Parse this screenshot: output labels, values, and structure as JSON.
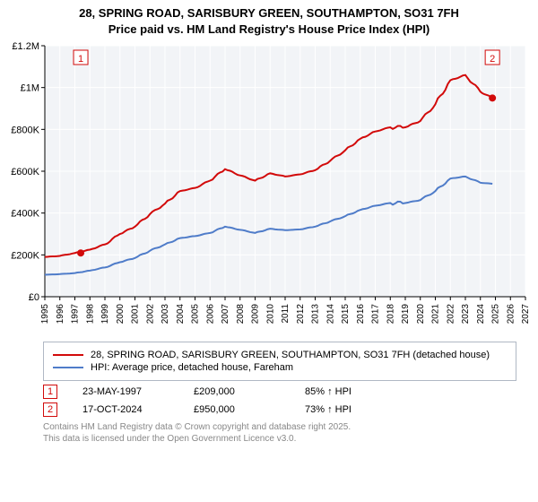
{
  "title": {
    "line1": "28, SPRING ROAD, SARISBURY GREEN, SOUTHAMPTON, SO31 7FH",
    "line2": "Price paid vs. HM Land Registry's House Price Index (HPI)",
    "fontsize": 13,
    "color": "#000000"
  },
  "chart": {
    "type": "line",
    "plot_bg": "#f2f4f7",
    "outer_bg": "#ffffff",
    "grid_color": "#ffffff",
    "axis_color": "#000000",
    "border_color": "#b0b8c4",
    "xlim": [
      1995,
      2027
    ],
    "ylim": [
      0,
      1200000
    ],
    "ytick_step": 200000,
    "ytick_labels": [
      "£0",
      "£200K",
      "£400K",
      "£600K",
      "£800K",
      "£1M",
      "£1.2M"
    ],
    "xticks": [
      1995,
      1996,
      1997,
      1998,
      1999,
      2000,
      2001,
      2002,
      2003,
      2004,
      2005,
      2006,
      2007,
      2008,
      2009,
      2010,
      2011,
      2012,
      2013,
      2014,
      2015,
      2016,
      2017,
      2018,
      2019,
      2020,
      2021,
      2022,
      2023,
      2024,
      2025,
      2026,
      2027
    ],
    "series": {
      "price_paid": {
        "label": "28, SPRING ROAD, SARISBURY GREEN, SOUTHAMPTON, SO31 7FH (detached house)",
        "color": "#d20a0a",
        "line_width": 2,
        "yvals_by_year": {
          "1995": 190000,
          "1996": 195000,
          "1997": 209000,
          "1998": 225000,
          "1999": 250000,
          "2000": 300000,
          "2001": 335000,
          "2002": 395000,
          "2003": 445000,
          "2004": 505000,
          "2005": 520000,
          "2006": 555000,
          "2007": 610000,
          "2008": 580000,
          "2009": 555000,
          "2010": 590000,
          "2011": 575000,
          "2012": 585000,
          "2013": 605000,
          "2014": 650000,
          "2015": 700000,
          "2016": 755000,
          "2017": 790000,
          "2018": 810000,
          "2019": 810000,
          "2020": 840000,
          "2021": 920000,
          "2022": 1035000,
          "2023": 1060000,
          "2024": 980000,
          "2024.8": 950000
        }
      },
      "hpi": {
        "label": "HPI: Average price, detached house, Fareham",
        "color": "#4f7cc9",
        "line_width": 2,
        "yvals_by_year": {
          "1995": 105000,
          "1996": 108000,
          "1997": 113000,
          "1998": 125000,
          "1999": 140000,
          "2000": 165000,
          "2001": 185000,
          "2002": 220000,
          "2003": 250000,
          "2004": 280000,
          "2005": 290000,
          "2006": 305000,
          "2007": 335000,
          "2008": 320000,
          "2009": 305000,
          "2010": 325000,
          "2011": 318000,
          "2012": 322000,
          "2013": 335000,
          "2014": 360000,
          "2015": 385000,
          "2016": 415000,
          "2017": 435000,
          "2018": 448000,
          "2019": 448000,
          "2020": 462000,
          "2021": 505000,
          "2022": 565000,
          "2023": 575000,
          "2024": 545000,
          "2024.8": 540000
        }
      }
    },
    "markers": [
      {
        "n": "1",
        "year": 1997.39,
        "value": 209000,
        "color": "#d20a0a",
        "annot_y": 1140000
      },
      {
        "n": "2",
        "year": 2024.8,
        "value": 950000,
        "color": "#d20a0a",
        "annot_y": 1140000
      }
    ]
  },
  "legend": {
    "items": [
      {
        "color": "#d20a0a",
        "width": 2,
        "label_key": "chart.series.price_paid.label"
      },
      {
        "color": "#4f7cc9",
        "width": 2,
        "label_key": "chart.series.hpi.label"
      }
    ]
  },
  "rows": [
    {
      "n": "1",
      "color": "#d20a0a",
      "date": "23-MAY-1997",
      "price": "£209,000",
      "pct": "85% ↑ HPI"
    },
    {
      "n": "2",
      "color": "#d20a0a",
      "date": "17-OCT-2024",
      "price": "£950,000",
      "pct": "73% ↑ HPI"
    }
  ],
  "footer": {
    "line1": "Contains HM Land Registry data © Crown copyright and database right 2025.",
    "line2": "This data is licensed under the Open Government Licence v3.0."
  }
}
